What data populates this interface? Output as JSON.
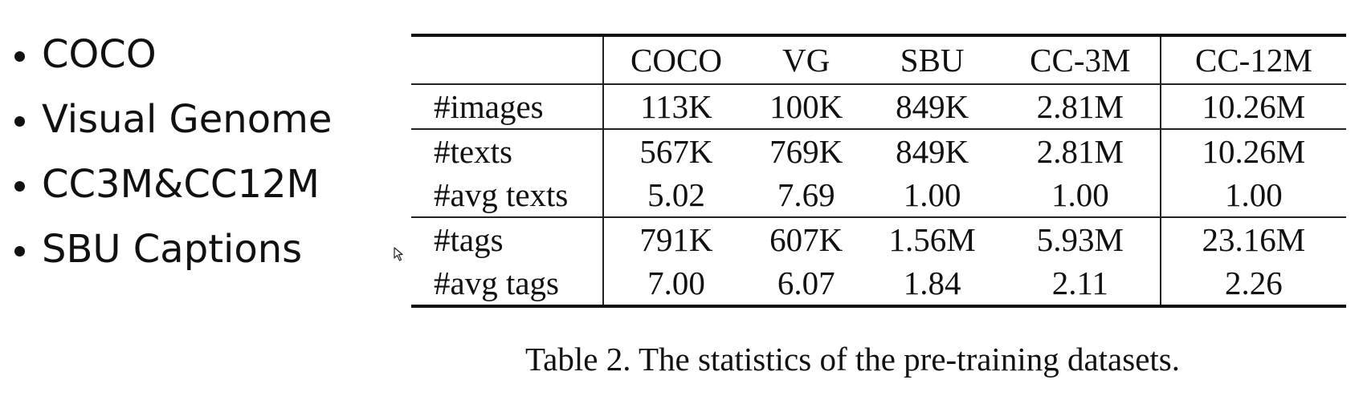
{
  "bullets": [
    {
      "label": "COCO"
    },
    {
      "label": "Visual Genome"
    },
    {
      "label": "CC3M&CC12M"
    },
    {
      "label": "SBU Captions"
    }
  ],
  "table": {
    "columns": [
      "",
      "COCO",
      "VG",
      "SBU",
      "CC-3M",
      "CC-12M"
    ],
    "rows": [
      {
        "label": "#images",
        "values": [
          "113K",
          "100K",
          "849K",
          "2.81M",
          "10.26M"
        ]
      },
      {
        "label": "#texts",
        "values": [
          "567K",
          "769K",
          "849K",
          "2.81M",
          "10.26M"
        ]
      },
      {
        "label": "#avg texts",
        "values": [
          "5.02",
          "7.69",
          "1.00",
          "1.00",
          "1.00"
        ]
      },
      {
        "label": "#tags",
        "values": [
          "791K",
          "607K",
          "1.56M",
          "5.93M",
          "23.16M"
        ]
      },
      {
        "label": "#avg tags",
        "values": [
          "7.00",
          "6.07",
          "1.84",
          "2.11",
          "2.26"
        ]
      }
    ]
  },
  "caption": "Table 2. The statistics of the pre-training datasets.",
  "icons": {
    "cursor": "mouse-pointer-icon"
  }
}
